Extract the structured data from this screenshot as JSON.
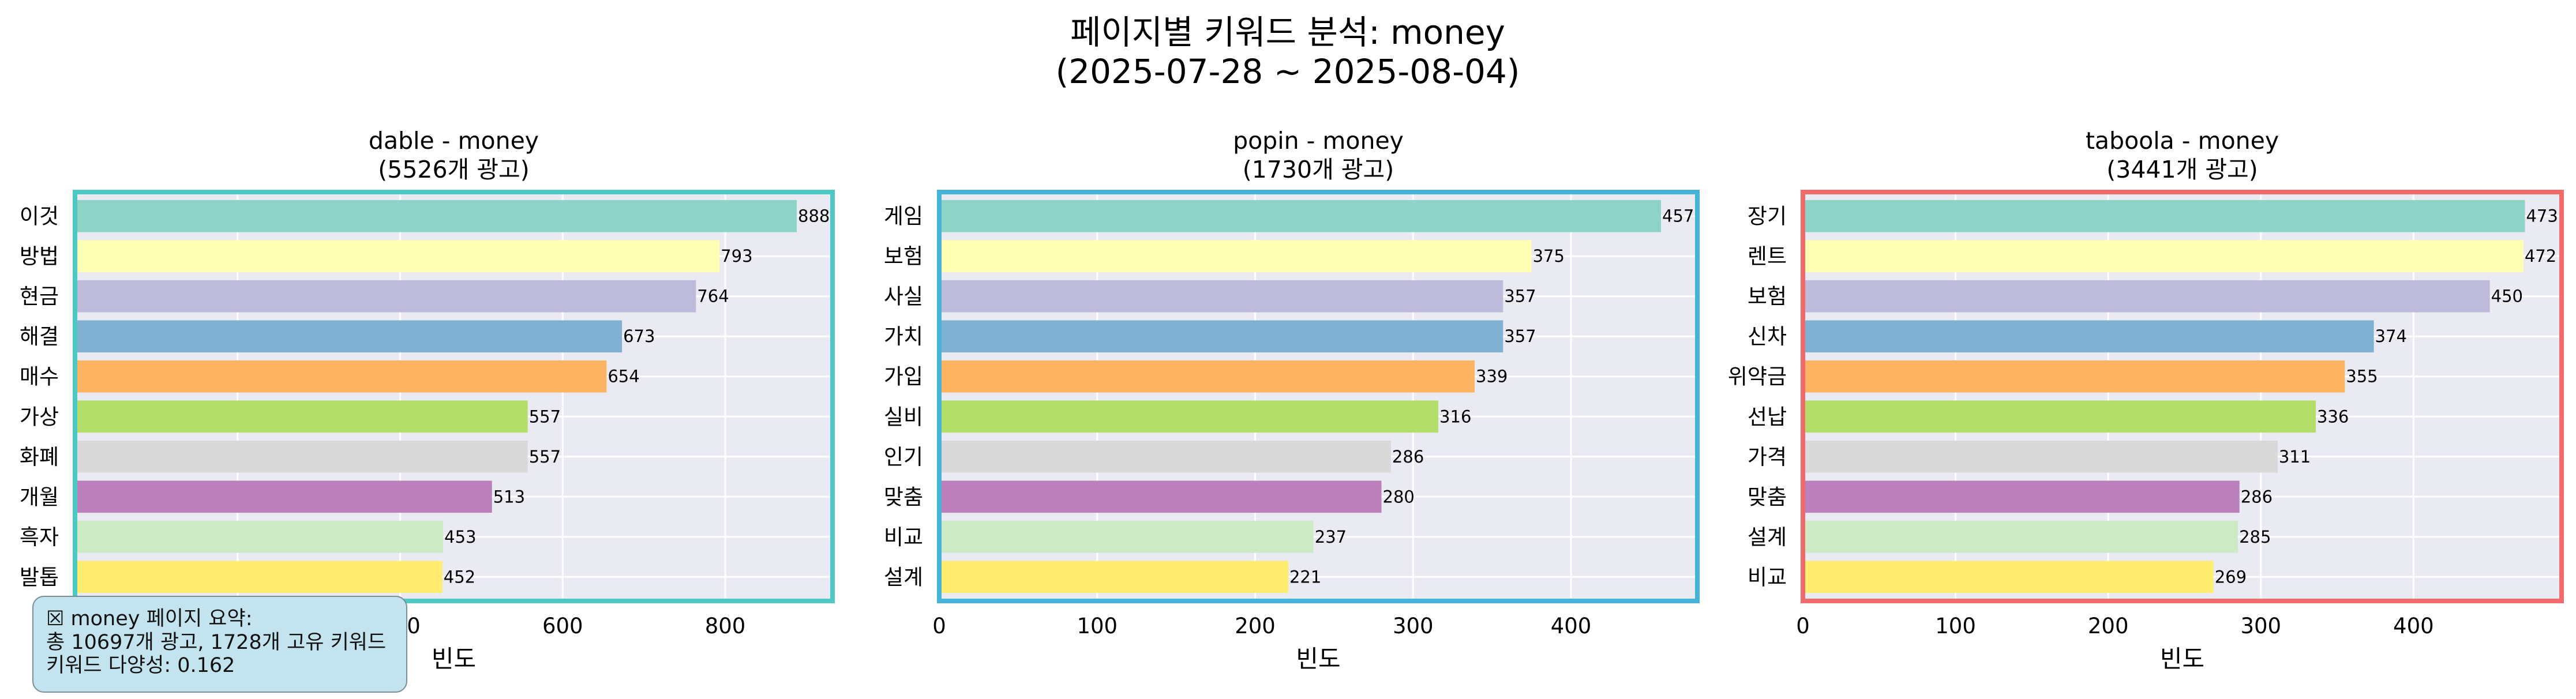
{
  "figure": {
    "title_line1": "페이지별 키워드 분석: money",
    "title_line2": "(2025-07-28 ~ 2025-08-04)"
  },
  "colors": {
    "bars": [
      "#8dd3c7",
      "#ffffb3",
      "#bebada",
      "#80b1d3",
      "#fdb462",
      "#b3de69",
      "#d9d9d9",
      "#bc80bd",
      "#ccebc5",
      "#ffed6f"
    ],
    "plot_bg": "#eaeaf2",
    "grid": "#ffffff"
  },
  "chart_data": [
    {
      "type": "bar",
      "orientation": "horizontal",
      "title_line1": "dable - money",
      "title_line2": "(5526개 광고)",
      "frame_color": "#4ec8c4",
      "categories": [
        "이것",
        "방법",
        "현금",
        "해결",
        "매수",
        "가상",
        "화폐",
        "개월",
        "흑자",
        "발톱"
      ],
      "values": [
        888,
        793,
        764,
        673,
        654,
        557,
        557,
        513,
        453,
        452
      ],
      "xlabel": "빈도",
      "xlim": [
        0,
        932
      ],
      "xticks": [
        0,
        200,
        400,
        600,
        800
      ],
      "grid": true
    },
    {
      "type": "bar",
      "orientation": "horizontal",
      "title_line1": "popin - money",
      "title_line2": "(1730개 광고)",
      "frame_color": "#45b3d8",
      "categories": [
        "게임",
        "보험",
        "사실",
        "가치",
        "가입",
        "실비",
        "인기",
        "맞춤",
        "비교",
        "설계"
      ],
      "values": [
        457,
        375,
        357,
        357,
        339,
        316,
        286,
        280,
        237,
        221
      ],
      "xlabel": "빈도",
      "xlim": [
        0,
        480
      ],
      "xticks": [
        0,
        100,
        200,
        300,
        400
      ],
      "grid": true
    },
    {
      "type": "bar",
      "orientation": "horizontal",
      "title_line1": "taboola - money",
      "title_line2": "(3441개 광고)",
      "frame_color": "#f26b6b",
      "categories": [
        "장기",
        "렌트",
        "보험",
        "신차",
        "위약금",
        "선납",
        "가격",
        "맞춤",
        "설계",
        "비교"
      ],
      "values": [
        473,
        472,
        450,
        374,
        355,
        336,
        311,
        286,
        285,
        269
      ],
      "xlabel": "빈도",
      "xlim": [
        0,
        497
      ],
      "xticks": [
        0,
        100,
        200,
        300,
        400
      ],
      "grid": true
    }
  ],
  "summary": {
    "line1": "☒ money 페이지 요약:",
    "line2": "총 10697개 광고, 1728개 고유 키워드",
    "line3": "키워드 다양성: 0.162"
  }
}
